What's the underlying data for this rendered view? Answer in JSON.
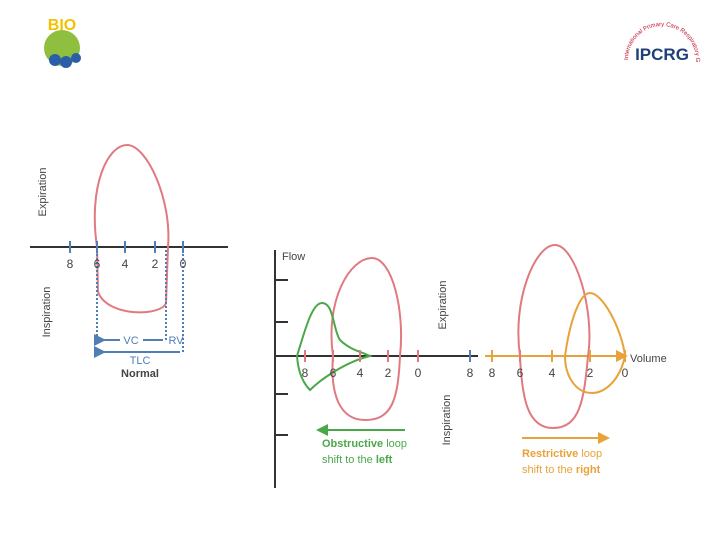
{
  "logos": {
    "left": "BIO",
    "right_name": "IPCRG",
    "right_ring": "International Primary Care Respiratory Group"
  },
  "normal": {
    "expiration": "Expiration",
    "inspiration": "Inspiration",
    "ticks": [
      "8",
      "6",
      "4",
      "2",
      "0"
    ],
    "vc": "VC",
    "rv": "RV",
    "tlc": "TLC",
    "caption": "Normal"
  },
  "abnormal": {
    "y_label": "Flow",
    "x_label": "Volume",
    "expiration": "Expiration",
    "inspiration": "Inspiration",
    "obstructive_ticks": [
      "8",
      "6",
      "4",
      "2",
      "0",
      "8"
    ],
    "restrictive_ticks": [
      "8",
      "6",
      "4",
      "2",
      "0"
    ],
    "obstructive": {
      "bold": "Obstructive",
      "rest": " loop",
      "line2": "shift to the ",
      "line2_bold": "left"
    },
    "restrictive": {
      "bold": "Restrictive",
      "rest": " loop",
      "line2": "shift to the ",
      "line2_bold": "right"
    }
  }
}
